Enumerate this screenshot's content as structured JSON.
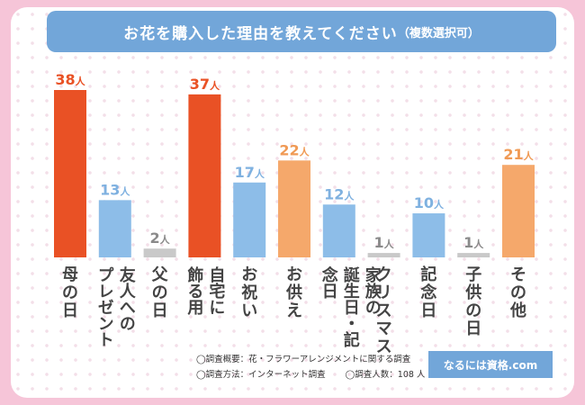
{
  "chart_data": {
    "type": "bar",
    "title": "お花を購入した理由を教えてください",
    "title_note": "（複数選択可）",
    "unit": "人",
    "categories": [
      "母の日",
      "友人へのプレゼント",
      "父の日",
      "自宅に飾る用",
      "お祝い",
      "お供え",
      "家族の誕生日・記念日",
      "クリスマス",
      "記念日",
      "子供の日",
      "その他"
    ],
    "category_lines": [
      [
        "母の日"
      ],
      [
        "友人への",
        "プレゼント"
      ],
      [
        "父の日"
      ],
      [
        "自宅に",
        "飾る用"
      ],
      [
        "お祝い"
      ],
      [
        "お供え"
      ],
      [
        "家族の",
        "誕生日・記念日"
      ],
      [
        "クリスマス"
      ],
      [
        "記念日"
      ],
      [
        "子供の日"
      ],
      [
        "その他"
      ]
    ],
    "values": [
      38,
      13,
      2,
      37,
      17,
      22,
      12,
      1,
      10,
      1,
      21
    ],
    "bar_colors": [
      "#e95125",
      "#8dbde8",
      "#c9c9c9",
      "#e95125",
      "#8dbde8",
      "#f5a86b",
      "#8dbde8",
      "#c9c9c9",
      "#8dbde8",
      "#c9c9c9",
      "#f5a86b"
    ],
    "label_colors": [
      "#e95125",
      "#7fb1e0",
      "#8a8a8a",
      "#e95125",
      "#7fb1e0",
      "#f09a55",
      "#7fb1e0",
      "#8a8a8a",
      "#7fb1e0",
      "#8a8a8a",
      "#f09a55"
    ],
    "ylim": [
      0,
      38
    ],
    "grid": false,
    "legend": "none",
    "xlabel": "",
    "ylabel": ""
  },
  "notes": {
    "summary": "◯調査概要：花・フラワーアレンジメントに関する調査",
    "method": "◯調査方法：インターネット調査",
    "respondents": "◯調査人数：108 人"
  },
  "brand": "なるには資格.com"
}
